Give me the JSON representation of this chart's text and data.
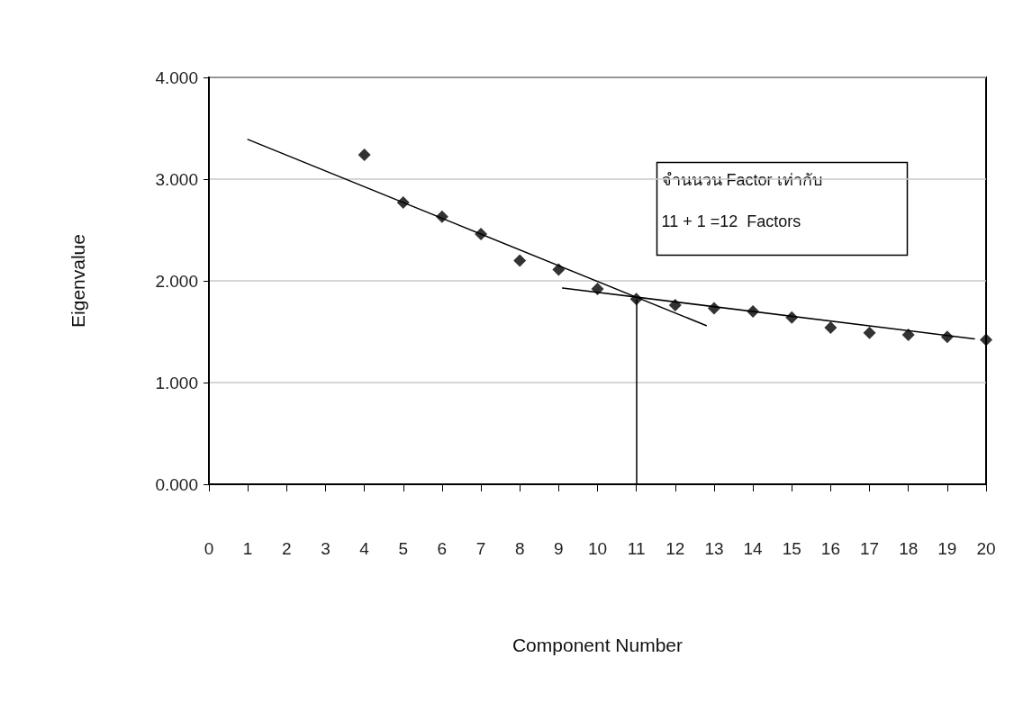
{
  "chart_data": {
    "type": "scatter",
    "xlabel": "Component Number",
    "ylabel": "Eigenvalue",
    "annotations": [
      "จำนนวน Factor เท่ากับ",
      "11 + 1 =12  Factors"
    ],
    "xlim": [
      0,
      20
    ],
    "xticks": [
      0,
      1,
      2,
      3,
      4,
      5,
      6,
      7,
      8,
      9,
      10,
      11,
      12,
      13,
      14,
      15,
      16,
      17,
      18,
      19,
      20
    ],
    "ylim": [
      0,
      4
    ],
    "yticks": [
      {
        "value": 0,
        "label": "0.000"
      },
      {
        "value": 1,
        "label": "1.000"
      },
      {
        "value": 2,
        "label": "2.000"
      },
      {
        "value": 3,
        "label": "3.000"
      },
      {
        "value": 4,
        "label": "4.000"
      }
    ],
    "grid": "y",
    "series": [
      {
        "color": "#000000",
        "marker": "diamond",
        "x": [
          4,
          5,
          6,
          7,
          8,
          9,
          10,
          11,
          12,
          13,
          14,
          15,
          16,
          17,
          18,
          19,
          20
        ],
        "values": [
          3.24,
          2.77,
          2.63,
          2.46,
          2.2,
          2.11,
          1.92,
          1.82,
          1.76,
          1.73,
          1.7,
          1.64,
          1.54,
          1.49,
          1.47,
          1.45,
          1.42
        ]
      },
      {
        "type": "line",
        "color": "#000000",
        "marker": "none",
        "line_style": "solid",
        "x": [
          1,
          12.8
        ],
        "values": [
          3.39,
          1.56
        ]
      },
      {
        "type": "line",
        "color": "#000000",
        "marker": "none",
        "line_style": "solid",
        "x": [
          9.1,
          19.7
        ],
        "values": [
          1.93,
          1.43
        ]
      }
    ],
    "ref_lines": [
      {
        "axis": "x",
        "value": 11,
        "color": "#000000",
        "line_style": "solid"
      }
    ]
  }
}
